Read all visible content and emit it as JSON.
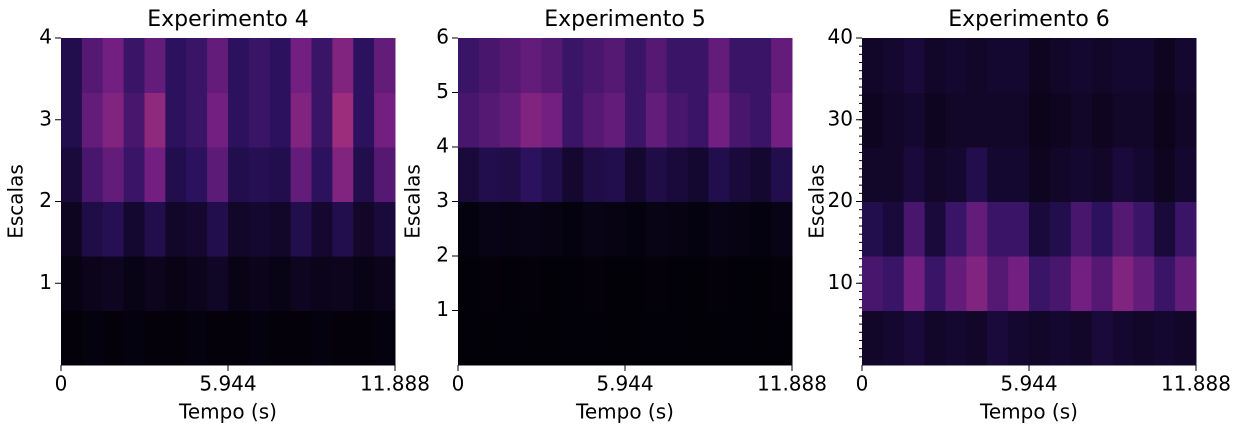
{
  "chart_data": [
    {
      "type": "heatmap",
      "title": "Experimento 4",
      "xlabel": "Tempo (s)",
      "ylabel": "Escalas",
      "xlim": [
        0,
        11.888
      ],
      "xticks": [
        0,
        5.944,
        11.888
      ],
      "ylim": [
        0,
        4
      ],
      "yticks": [
        1,
        2,
        3,
        4
      ],
      "zlim": [
        0,
        1
      ],
      "colormap": [
        "#000004",
        "#2c115f",
        "#721f81",
        "#b73779",
        "#f1605d"
      ],
      "z": [
        [
          0.02,
          0.03,
          0.02,
          0.03,
          0.02,
          0.02,
          0.03,
          0.02,
          0.02,
          0.03,
          0.02,
          0.02,
          0.03,
          0.02,
          0.02,
          0.03
        ],
        [
          0.04,
          0.06,
          0.08,
          0.05,
          0.07,
          0.05,
          0.06,
          0.09,
          0.05,
          0.06,
          0.05,
          0.08,
          0.06,
          0.07,
          0.05,
          0.06
        ],
        [
          0.08,
          0.18,
          0.22,
          0.12,
          0.2,
          0.1,
          0.12,
          0.2,
          0.1,
          0.12,
          0.1,
          0.2,
          0.12,
          0.2,
          0.1,
          0.15
        ],
        [
          0.15,
          0.35,
          0.45,
          0.3,
          0.5,
          0.2,
          0.25,
          0.42,
          0.2,
          0.22,
          0.2,
          0.45,
          0.25,
          0.55,
          0.2,
          0.4
        ],
        [
          0.2,
          0.45,
          0.55,
          0.35,
          0.6,
          0.25,
          0.3,
          0.5,
          0.25,
          0.3,
          0.25,
          0.55,
          0.3,
          0.65,
          0.25,
          0.5
        ],
        [
          0.2,
          0.4,
          0.5,
          0.3,
          0.45,
          0.25,
          0.3,
          0.45,
          0.25,
          0.3,
          0.25,
          0.5,
          0.3,
          0.55,
          0.25,
          0.45
        ]
      ]
    },
    {
      "type": "heatmap",
      "title": "Experimento 5",
      "xlabel": "Tempo (s)",
      "ylabel": "Escalas",
      "xlim": [
        0,
        11.888
      ],
      "xticks": [
        0,
        5.944,
        11.888
      ],
      "ylim": [
        0,
        6
      ],
      "yticks": [
        1,
        2,
        3,
        4,
        5,
        6
      ],
      "zlim": [
        0,
        1
      ],
      "colormap": [
        "#000004",
        "#2c115f",
        "#721f81",
        "#b73779",
        "#f1605d"
      ],
      "z": [
        [
          0.01,
          0.01,
          0.01,
          0.01,
          0.01,
          0.01,
          0.01,
          0.01,
          0.01,
          0.01,
          0.01,
          0.01,
          0.01,
          0.01,
          0.01,
          0.01
        ],
        [
          0.01,
          0.02,
          0.01,
          0.02,
          0.01,
          0.01,
          0.02,
          0.01,
          0.01,
          0.02,
          0.01,
          0.01,
          0.02,
          0.01,
          0.01,
          0.02
        ],
        [
          0.03,
          0.05,
          0.04,
          0.05,
          0.04,
          0.03,
          0.05,
          0.04,
          0.03,
          0.05,
          0.04,
          0.03,
          0.05,
          0.04,
          0.03,
          0.05
        ],
        [
          0.15,
          0.2,
          0.18,
          0.25,
          0.2,
          0.12,
          0.18,
          0.2,
          0.12,
          0.18,
          0.15,
          0.12,
          0.2,
          0.15,
          0.12,
          0.2
        ],
        [
          0.35,
          0.4,
          0.45,
          0.55,
          0.5,
          0.3,
          0.4,
          0.45,
          0.3,
          0.45,
          0.35,
          0.3,
          0.5,
          0.35,
          0.3,
          0.5
        ],
        [
          0.3,
          0.35,
          0.4,
          0.45,
          0.4,
          0.3,
          0.35,
          0.4,
          0.3,
          0.4,
          0.3,
          0.3,
          0.45,
          0.3,
          0.3,
          0.45
        ]
      ]
    },
    {
      "type": "heatmap",
      "title": "Experimento 6",
      "xlabel": "Tempo (s)",
      "ylabel": "Escalas",
      "xlim": [
        0,
        11.888
      ],
      "xticks": [
        0,
        5.944,
        11.888
      ],
      "ylim": [
        0,
        40
      ],
      "yticks": [
        10,
        20,
        30,
        40
      ],
      "yminor_step": 1,
      "zlim": [
        0,
        1
      ],
      "colormap": [
        "#000004",
        "#2c115f",
        "#721f81",
        "#b73779",
        "#f1605d"
      ],
      "z": [
        [
          0.1,
          0.12,
          0.15,
          0.1,
          0.12,
          0.1,
          0.15,
          0.12,
          0.1,
          0.12,
          0.1,
          0.15,
          0.12,
          0.1,
          0.12,
          0.1
        ],
        [
          0.35,
          0.3,
          0.5,
          0.3,
          0.45,
          0.55,
          0.4,
          0.5,
          0.3,
          0.35,
          0.5,
          0.4,
          0.55,
          0.45,
          0.3,
          0.45
        ],
        [
          0.2,
          0.15,
          0.35,
          0.15,
          0.3,
          0.45,
          0.3,
          0.3,
          0.15,
          0.2,
          0.35,
          0.25,
          0.4,
          0.3,
          0.15,
          0.3
        ],
        [
          0.1,
          0.1,
          0.15,
          0.1,
          0.12,
          0.2,
          0.12,
          0.12,
          0.08,
          0.1,
          0.12,
          0.1,
          0.15,
          0.12,
          0.08,
          0.12
        ],
        [
          0.08,
          0.1,
          0.12,
          0.08,
          0.1,
          0.1,
          0.1,
          0.1,
          0.06,
          0.08,
          0.1,
          0.08,
          0.1,
          0.1,
          0.06,
          0.1
        ],
        [
          0.1,
          0.12,
          0.15,
          0.1,
          0.12,
          0.1,
          0.12,
          0.12,
          0.08,
          0.1,
          0.12,
          0.1,
          0.12,
          0.12,
          0.08,
          0.12
        ]
      ]
    }
  ]
}
